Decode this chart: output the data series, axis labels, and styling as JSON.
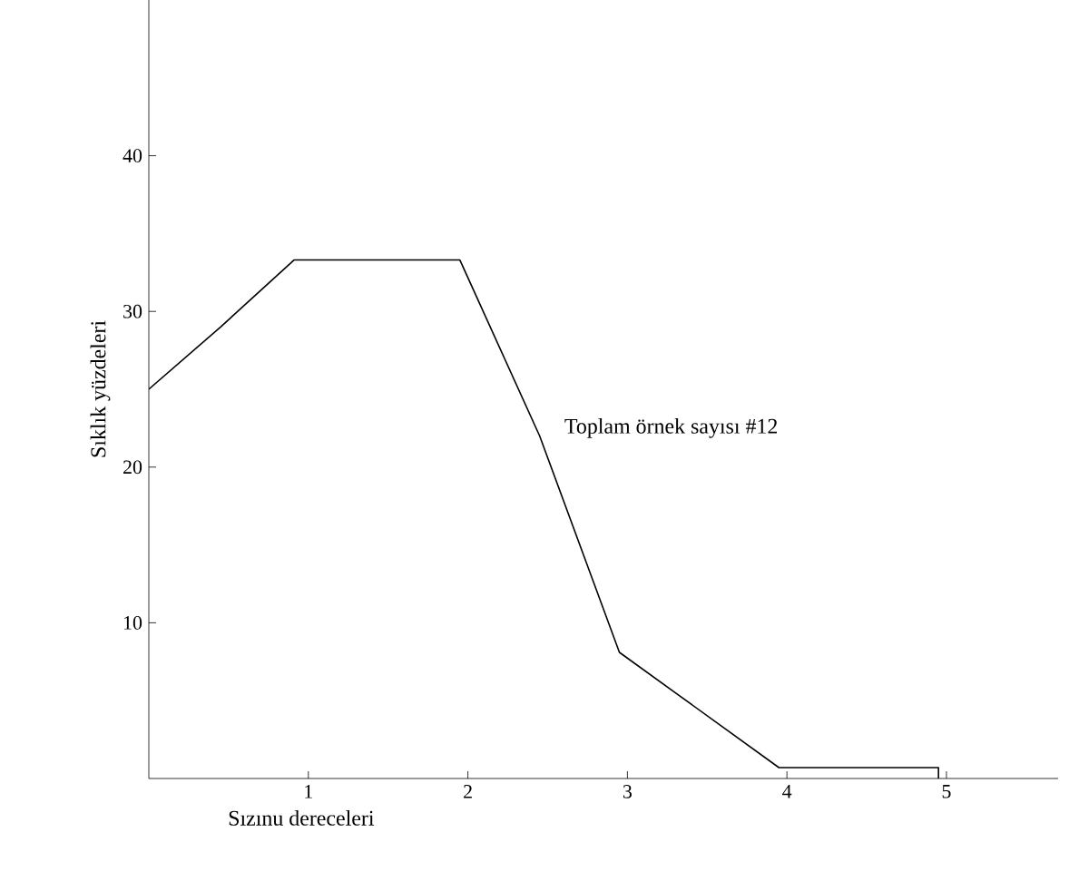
{
  "chart_data": {
    "type": "line",
    "xlabel": "Sızınu dereceleri",
    "ylabel": "Sıklık yüzdeleri",
    "annotations": [
      "Toplam örnek sayısı #12"
    ],
    "x": [
      0,
      0.45,
      0.91,
      1.95,
      2.45,
      2.95,
      3.95,
      4.95,
      4.95
    ],
    "series": [
      {
        "color": "#000000",
        "values": [
          25,
          29,
          33.3,
          33.3,
          22,
          8.1,
          0.7,
          0.7,
          0
        ]
      }
    ],
    "xlim": [
      0,
      5.7
    ],
    "ylim": [
      0,
      50
    ],
    "xticks": [
      1,
      2,
      3,
      4,
      5
    ],
    "yticks": [
      10,
      20,
      30,
      40
    ],
    "grid": false,
    "marker": "none",
    "line_style": "solid"
  }
}
